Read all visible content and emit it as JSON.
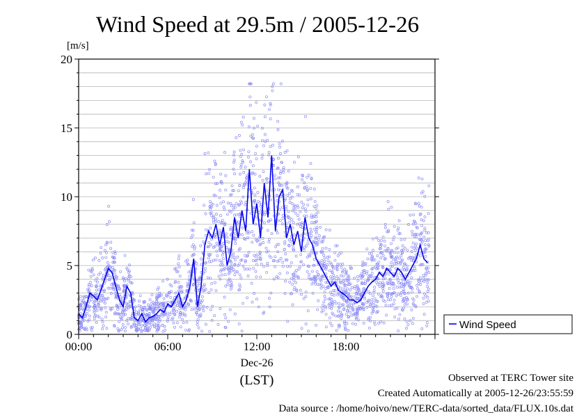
{
  "chart_data": {
    "type": "line",
    "title": "Wind Speed at 29.5m / 2005-12-26",
    "ylabel": "[m/s]",
    "xlabel": "(LST)",
    "x_date_label": "Dec-26",
    "ylim": [
      0,
      20
    ],
    "xlim": [
      0,
      24
    ],
    "y_ticks": [
      "0",
      "5",
      "10",
      "15",
      "20"
    ],
    "x_ticks": [
      "00:00",
      "06:00",
      "12:00",
      "18:00"
    ],
    "x_tick_hours": [
      0,
      6,
      12,
      18
    ],
    "grid": true,
    "legend_position": "bottom-right, outside plot",
    "series": [
      {
        "name": "Wind Speed",
        "color": "#0000ee",
        "x_hours": [
          0.0,
          0.25,
          0.5,
          0.75,
          1.0,
          1.25,
          1.5,
          1.75,
          2.0,
          2.25,
          2.5,
          2.75,
          3.0,
          3.25,
          3.5,
          3.75,
          4.0,
          4.25,
          4.5,
          4.75,
          5.0,
          5.25,
          5.5,
          5.75,
          6.0,
          6.25,
          6.5,
          6.75,
          7.0,
          7.25,
          7.5,
          7.75,
          8.0,
          8.25,
          8.5,
          8.75,
          9.0,
          9.25,
          9.5,
          9.75,
          10.0,
          10.25,
          10.5,
          10.75,
          11.0,
          11.25,
          11.5,
          11.75,
          12.0,
          12.25,
          12.5,
          12.75,
          13.0,
          13.25,
          13.5,
          13.75,
          14.0,
          14.25,
          14.5,
          14.75,
          15.0,
          15.25,
          15.5,
          15.75,
          16.0,
          16.25,
          16.5,
          16.75,
          17.0,
          17.25,
          17.5,
          17.75,
          18.0,
          18.25,
          18.5,
          18.75,
          19.0,
          19.25,
          19.5,
          19.75,
          20.0,
          20.25,
          20.5,
          20.75,
          21.0,
          21.25,
          21.5,
          21.75,
          22.0,
          22.25,
          22.5,
          22.75,
          23.0,
          23.25,
          23.5
        ],
        "values": [
          1.5,
          1.2,
          2.0,
          3.0,
          2.8,
          2.5,
          3.2,
          4.0,
          4.8,
          4.5,
          3.5,
          2.5,
          2.0,
          3.5,
          3.0,
          1.2,
          1.0,
          1.5,
          0.9,
          1.2,
          1.3,
          1.5,
          1.8,
          1.6,
          2.2,
          2.0,
          2.5,
          3.0,
          2.0,
          2.5,
          3.5,
          5.5,
          2.0,
          3.5,
          6.5,
          7.5,
          7.0,
          8.0,
          6.5,
          7.8,
          5.0,
          6.0,
          8.5,
          7.0,
          9.0,
          7.5,
          12.0,
          8.0,
          9.5,
          7.0,
          11.0,
          8.5,
          13.0,
          7.5,
          10.0,
          10.5,
          7.0,
          8.0,
          6.5,
          7.5,
          6.0,
          8.5,
          7.0,
          6.5,
          5.5,
          5.0,
          4.5,
          4.0,
          3.5,
          3.8,
          3.2,
          3.0,
          2.8,
          2.5,
          2.5,
          2.3,
          2.5,
          3.0,
          3.5,
          3.8,
          4.0,
          4.5,
          4.2,
          4.8,
          4.5,
          4.2,
          4.8,
          4.5,
          4.0,
          4.5,
          5.0,
          5.5,
          6.5,
          5.5,
          5.2
        ]
      }
    ]
  },
  "footer": {
    "line1": "Observed at TERC Tower site",
    "line2": "Created Automatically at 2005-12-26/23:55:59",
    "line3": "Data source : /home/hoivo/new/TERC-data/sorted_data/FLUX.10s.dat"
  }
}
